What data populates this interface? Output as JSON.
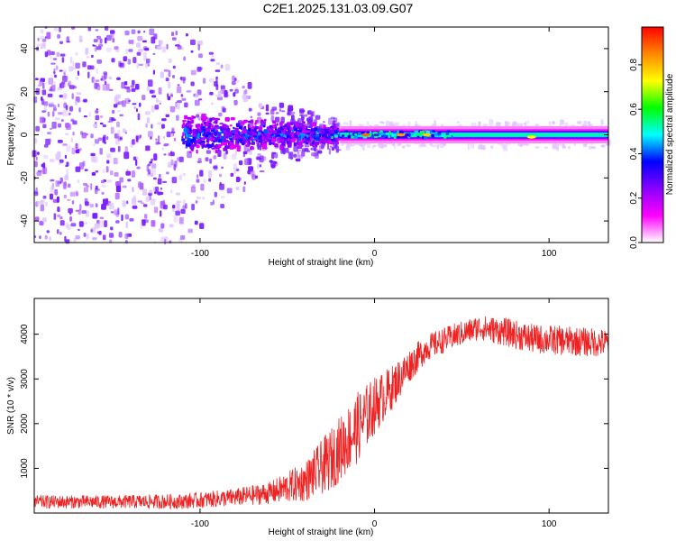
{
  "figure": {
    "title": "C2E1.2025.131.03.09.G07"
  },
  "chart_data": [
    {
      "type": "heatmap",
      "xlabel": "Height of straight line (km)",
      "ylabel": "Frequency (Hz)",
      "xlim": [
        -195,
        134
      ],
      "ylim": [
        -50,
        50
      ],
      "xticks": [
        -100,
        0,
        100
      ],
      "yticks": [
        -40,
        -20,
        0,
        20,
        40
      ],
      "grid": false,
      "colorbar": {
        "label": "Normalized spectral amplitude",
        "range": [
          0,
          0.97
        ],
        "ticks": [
          0.0,
          0.2,
          0.4,
          0.6,
          0.8
        ],
        "colormap": [
          "#ffffff",
          "#ff00ff",
          "#8800ff",
          "#0000ff",
          "#00ffff",
          "#00ff00",
          "#ffff00",
          "#ff8800",
          "#ff0000"
        ]
      },
      "regions": [
        {
          "x": [
            -195,
            -110
          ],
          "freq_spread_hz": 50,
          "amplitude": 0.1,
          "description_level": "scattered"
        },
        {
          "x": [
            -110,
            -20
          ],
          "freq_spread_hz": 8,
          "amplitude": 0.25
        },
        {
          "x": [
            -20,
            134
          ],
          "freq_spread_hz": 3,
          "amplitude": 0.5
        }
      ],
      "peaks": [
        {
          "x": -5,
          "freq": 0,
          "amplitude": 0.9
        },
        {
          "x": 15,
          "freq": 0,
          "amplitude": 0.85
        },
        {
          "x": 30,
          "freq": 0,
          "amplitude": 0.8
        },
        {
          "x": 90,
          "freq": -1,
          "amplitude": 0.75
        }
      ]
    },
    {
      "type": "line",
      "xlabel": "Height of straight line (km)",
      "ylabel": "SNR (10 * v/v)",
      "xlim": [
        -195,
        134
      ],
      "ylim": [
        0,
        4800
      ],
      "xticks": [
        -100,
        0,
        100
      ],
      "yticks": [
        1000,
        2000,
        3000,
        4000
      ],
      "grid": false,
      "series": [
        {
          "color": "#ee2222",
          "x": [
            -195,
            -150,
            -110,
            -80,
            -60,
            -40,
            -25,
            -10,
            0,
            10,
            20,
            30,
            45,
            60,
            75,
            90,
            110,
            134
          ],
          "y": [
            250,
            250,
            260,
            350,
            450,
            700,
            1200,
            1900,
            2400,
            2800,
            3300,
            3700,
            3950,
            4150,
            4050,
            3900,
            3850,
            3800
          ],
          "noise": [
            150,
            150,
            170,
            200,
            250,
            450,
            700,
            800,
            650,
            500,
            380,
            300,
            280,
            280,
            320,
            330,
            330,
            320
          ]
        }
      ]
    }
  ]
}
